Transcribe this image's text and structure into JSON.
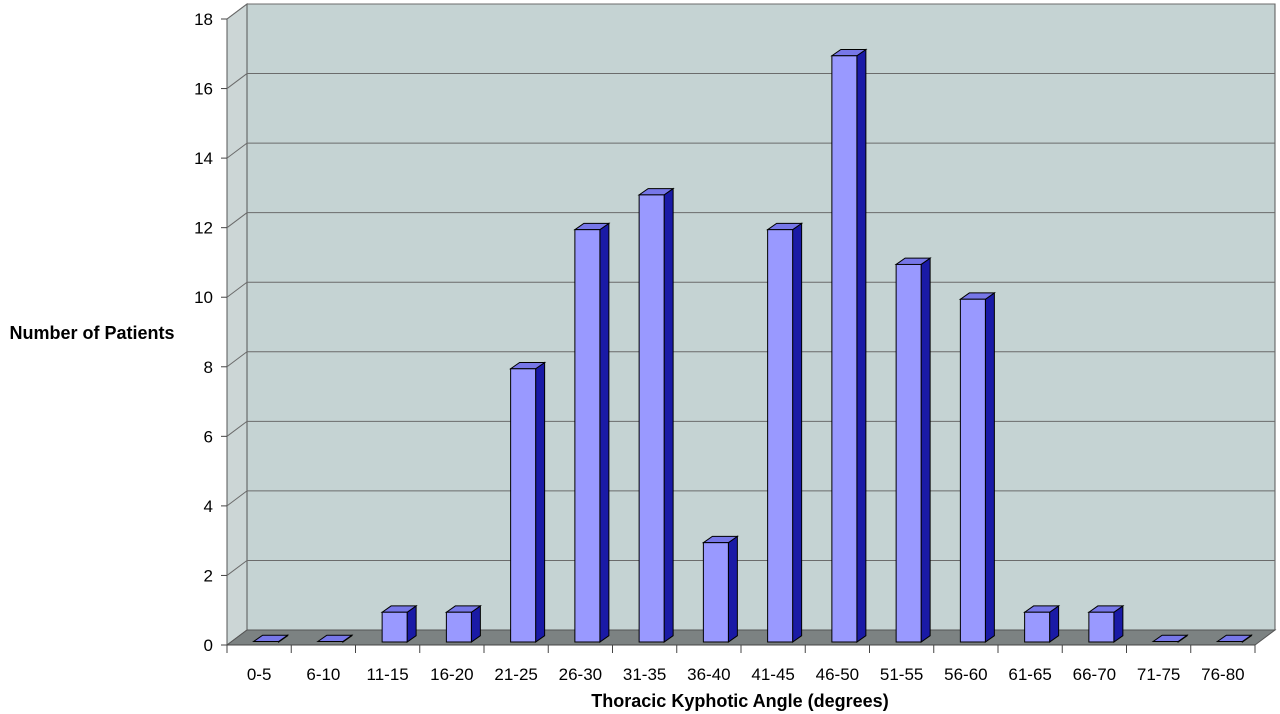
{
  "chart_data": {
    "type": "bar",
    "title": "",
    "xlabel": "Thoracic Kyphotic Angle (degrees)",
    "ylabel": "Number of Patients",
    "categories": [
      "0-5",
      "6-10",
      "11-15",
      "16-20",
      "21-25",
      "26-30",
      "31-35",
      "36-40",
      "41-45",
      "46-50",
      "51-55",
      "56-60",
      "61-65",
      "66-70",
      "71-75",
      "76-80"
    ],
    "values": [
      0,
      0,
      1,
      1,
      8,
      12,
      13,
      3,
      12,
      17,
      11,
      10,
      1,
      1,
      0,
      0
    ],
    "ylim": [
      0,
      18
    ],
    "yticks": [
      "0",
      "2",
      "4",
      "6",
      "8",
      "10",
      "12",
      "14",
      "16",
      "18"
    ],
    "grid": true,
    "legend": "none",
    "style": "3d",
    "colors": {
      "bar_front": "#9999ff",
      "bar_top": "#7777e8",
      "bar_side": "#1a1aa6",
      "plot_wall": "#c5d3d3",
      "left_wall": "#ccd6d6",
      "floor": "#7c8282",
      "gridline": "#6b6b6b"
    }
  }
}
